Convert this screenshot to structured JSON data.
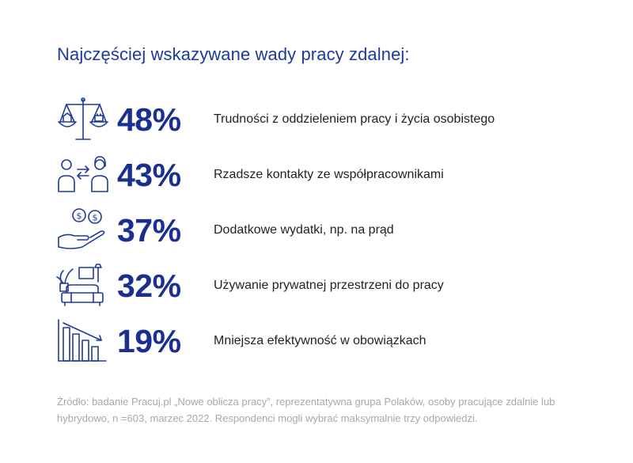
{
  "title": "Najczęściej wskazywane wady  pracy zdalnej:",
  "chart_data": {
    "type": "table",
    "items": [
      {
        "icon": "balance-scale-icon",
        "value": 48,
        "value_label": "48%",
        "label": "Trudności z oddzieleniem pracy i życia osobistego"
      },
      {
        "icon": "two-people-arrows-icon",
        "value": 43,
        "value_label": "43%",
        "label": "Rzadsze kontakty ze współpracownikami"
      },
      {
        "icon": "hand-coins-icon",
        "value": 37,
        "value_label": "37%",
        "label": "Dodatkowe wydatki, np. na prąd"
      },
      {
        "icon": "living-room-icon",
        "value": 32,
        "value_label": "32%",
        "label": "Używanie prywatnej przestrzeni do pracy"
      },
      {
        "icon": "declining-bars-icon",
        "value": 19,
        "value_label": "19%",
        "label": "Mniejsza efektywność w obowiązkach"
      }
    ]
  },
  "source": "Źródło: badanie Pracuj.pl „Nowe oblicza pracy”, reprezentatywna grupa Polaków, osoby pracujące zdalnie lub hybrydowo, n =603, marzec 2022. Respondenci mogli wybrać maksymalnie trzy odpowiedzi.",
  "colors": {
    "accent": "#1d3a9c",
    "text": "#222222",
    "muted": "#a8a8a8"
  }
}
